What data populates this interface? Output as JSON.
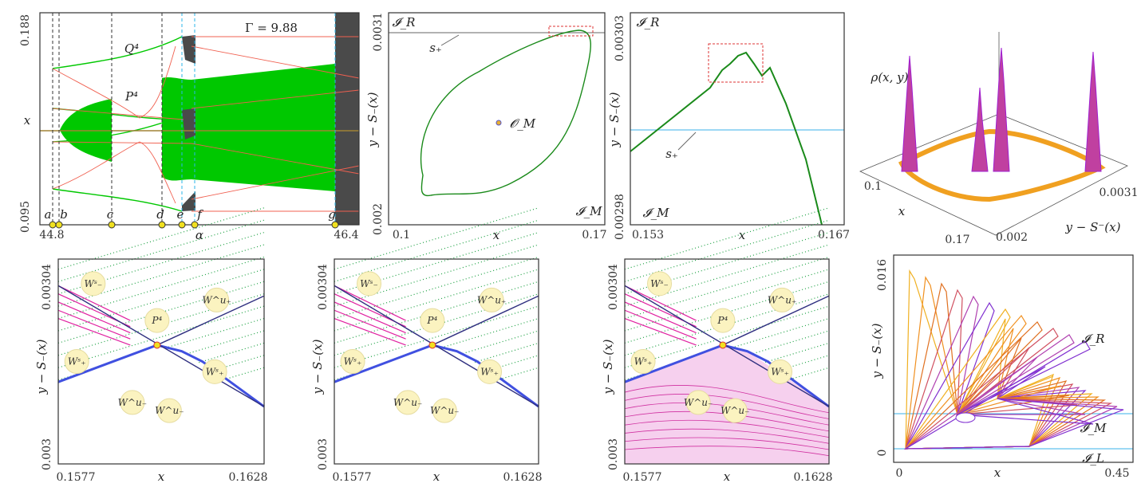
{
  "chart_data": [
    {
      "id": "bifurcation",
      "type": "scatter",
      "title": "",
      "annotation": "Γ = 9.88",
      "xlabel": "α",
      "ylabel": "x",
      "xticks": [
        "44.8",
        "46.4"
      ],
      "yticks": [
        "0.188",
        "0.095"
      ],
      "xlim": [
        44.8,
        46.4
      ],
      "ylim": [
        0.095,
        0.188
      ],
      "markers": [
        "a",
        "b",
        "c",
        "d",
        "e",
        "f",
        "g"
      ],
      "curve_labels": [
        "Q⁴",
        "P⁴"
      ],
      "colors": {
        "stable": "#00c800",
        "unstable": "#f06050",
        "chaos": "#4a4a4a",
        "guide": "#2ab6e8",
        "marker": "#f0e020"
      }
    },
    {
      "id": "invariant-curve",
      "type": "line",
      "xlabel": "x",
      "ylabel": "y − S₋(x)",
      "xticks": [
        "0.1",
        "0.17"
      ],
      "yticks": [
        "0.0031",
        "0.002"
      ],
      "labels": [
        "𝓘_R",
        "s₊",
        "𝓞_M",
        "𝓘_M"
      ]
    },
    {
      "id": "zoom-curve",
      "type": "line",
      "xlabel": "x",
      "ylabel": "y − S₋(x)",
      "xticks": [
        "0.153",
        "0.167"
      ],
      "yticks": [
        "0.00303",
        "0.00298"
      ],
      "labels": [
        "𝓘_R",
        "s₊",
        "𝓘_M"
      ]
    },
    {
      "id": "density-3d",
      "type": "area",
      "zlabel": "ρ(x, y)",
      "xlabel": "x",
      "ylabel": "y − S⁻(x)",
      "xticks": [
        "0.1",
        "0.17"
      ],
      "yticks": [
        "0.002",
        "0.0031"
      ]
    },
    {
      "id": "manifolds-1",
      "type": "scatter",
      "xlabel": "x",
      "ylabel": "y − S₋(x)",
      "xticks": [
        "0.1577",
        "0.1628"
      ],
      "yticks": [
        "0.00304",
        "0.003"
      ],
      "callouts": [
        "Wˢ₋",
        "W^u₊",
        "P⁴",
        "Wˢ₊",
        "Wˢ₊",
        "W^u₋",
        "W^u₋"
      ]
    },
    {
      "id": "manifolds-2",
      "type": "scatter",
      "xlabel": "x",
      "ylabel": "y − S₋(x)",
      "xticks": [
        "0.1577",
        "0.1628"
      ],
      "yticks": [
        "0.00304",
        "0.003"
      ],
      "callouts": [
        "Wˢ₋",
        "W^u₊",
        "P⁴",
        "Wˢ₊",
        "Wˢ₊",
        "W^u₋",
        "W^u₋"
      ]
    },
    {
      "id": "manifolds-3",
      "type": "scatter",
      "xlabel": "x",
      "ylabel": "y − S₋(x)",
      "xticks": [
        "0.1577",
        "0.1628"
      ],
      "yticks": [
        "0.00304",
        "0.003"
      ],
      "callouts": [
        "Wˢ₋",
        "W^u₊",
        "P⁴",
        "Wˢ₊",
        "Wˢ₊",
        "W^u₋",
        "W^u₋"
      ]
    },
    {
      "id": "spiral-curves",
      "type": "line",
      "xlabel": "x",
      "ylabel": "y − S₋(x)",
      "xticks": [
        "0",
        "0.45"
      ],
      "yticks": [
        "0.016",
        "0"
      ],
      "labels": [
        "𝓘_R",
        "𝓘_M",
        "𝓘_L"
      ]
    }
  ]
}
